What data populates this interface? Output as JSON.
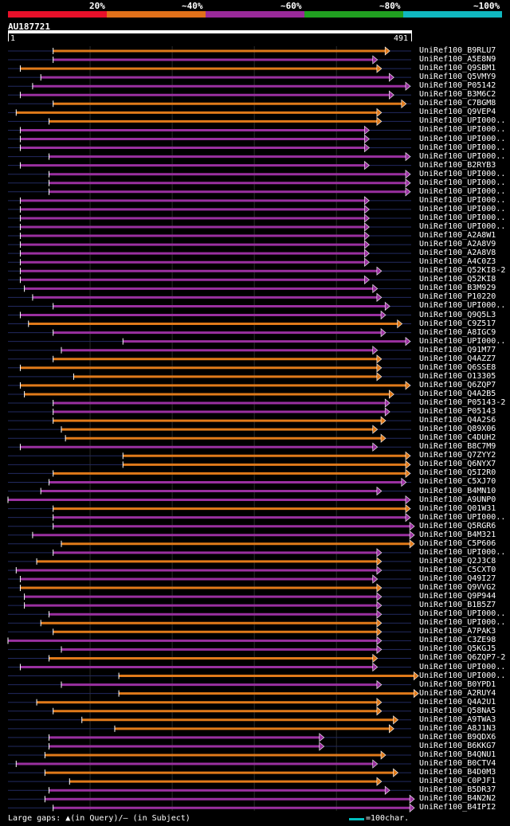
{
  "legend": [
    {
      "label": "20%",
      "color": "#e8102a"
    },
    {
      "label": "~40%",
      "color": "#e0701a"
    },
    {
      "label": "~60%",
      "color": "#9a2a9a"
    },
    {
      "label": "~80%",
      "color": "#20a020"
    },
    {
      "label": "~100%",
      "color": "#10b8c0"
    }
  ],
  "query": {
    "name": "AU187721",
    "start": "1",
    "end": "491"
  },
  "footer": {
    "gaps_text": "Large gaps: ▲(in Query)/– (in Subject)",
    "scale_text": "=100char."
  },
  "colors": {
    "orange": "#e07a1a",
    "purple": "#9a30a0",
    "gap": "#ffffff",
    "guide": "#222a60"
  },
  "chart_data": {
    "type": "alignment-overview",
    "query_length": 491,
    "hits": [
      {
        "name": "UniRef100_B9RLU7",
        "start": 55,
        "end": 465,
        "color": "orange"
      },
      {
        "name": "UniRef100_A5E8N9",
        "start": 55,
        "end": 450,
        "color": "purple"
      },
      {
        "name": "UniRef100_Q9SBM1",
        "start": 15,
        "end": 455,
        "color": "orange"
      },
      {
        "name": "UniRef100_Q5VMY9",
        "start": 40,
        "end": 470,
        "color": "purple"
      },
      {
        "name": "UniRef100_P05142",
        "start": 30,
        "end": 490,
        "color": "purple"
      },
      {
        "name": "UniRef100_B3M6C2",
        "start": 15,
        "end": 470,
        "color": "purple"
      },
      {
        "name": "UniRef100_C7BGM8",
        "start": 55,
        "end": 485,
        "color": "orange"
      },
      {
        "name": "UniRef100_Q9VEP4",
        "start": 10,
        "end": 455,
        "color": "orange"
      },
      {
        "name": "UniRef100_UPI000..",
        "start": 50,
        "end": 455,
        "color": "orange"
      },
      {
        "name": "UniRef100_UPI000..",
        "start": 15,
        "end": 440,
        "color": "purple"
      },
      {
        "name": "UniRef100_UPI000..",
        "start": 15,
        "end": 440,
        "color": "purple"
      },
      {
        "name": "UniRef100_UPI000..",
        "start": 15,
        "end": 440,
        "color": "purple"
      },
      {
        "name": "UniRef100_UPI000..",
        "start": 50,
        "end": 490,
        "color": "purple"
      },
      {
        "name": "UniRef100_B2RYB3",
        "start": 15,
        "end": 440,
        "color": "purple"
      },
      {
        "name": "UniRef100_UPI000..",
        "start": 50,
        "end": 490,
        "color": "purple"
      },
      {
        "name": "UniRef100_UPI000..",
        "start": 50,
        "end": 490,
        "color": "purple"
      },
      {
        "name": "UniRef100_UPI000..",
        "start": 50,
        "end": 490,
        "color": "purple"
      },
      {
        "name": "UniRef100_UPI000..",
        "start": 15,
        "end": 440,
        "color": "purple"
      },
      {
        "name": "UniRef100_UPI000..",
        "start": 15,
        "end": 440,
        "color": "purple"
      },
      {
        "name": "UniRef100_UPI000..",
        "start": 15,
        "end": 440,
        "color": "purple"
      },
      {
        "name": "UniRef100_UPI000..",
        "start": 15,
        "end": 440,
        "color": "purple"
      },
      {
        "name": "UniRef100_A2A8W1",
        "start": 15,
        "end": 440,
        "color": "purple"
      },
      {
        "name": "UniRef100_A2A8V9",
        "start": 15,
        "end": 440,
        "color": "purple"
      },
      {
        "name": "UniRef100_A2A8V8",
        "start": 15,
        "end": 440,
        "color": "purple"
      },
      {
        "name": "UniRef100_A4C0Z3",
        "start": 15,
        "end": 440,
        "color": "purple"
      },
      {
        "name": "UniRef100_Q52KI8-2",
        "start": 15,
        "end": 455,
        "color": "purple"
      },
      {
        "name": "UniRef100_Q52KI8",
        "start": 15,
        "end": 440,
        "color": "purple"
      },
      {
        "name": "UniRef100_B3M929",
        "start": 20,
        "end": 450,
        "color": "purple"
      },
      {
        "name": "UniRef100_P10220",
        "start": 30,
        "end": 455,
        "color": "purple"
      },
      {
        "name": "UniRef100_UPI000..",
        "start": 55,
        "end": 465,
        "color": "purple"
      },
      {
        "name": "UniRef100_Q9Q5L3",
        "start": 15,
        "end": 460,
        "color": "purple"
      },
      {
        "name": "UniRef100_C9Z517",
        "start": 25,
        "end": 480,
        "color": "orange"
      },
      {
        "name": "UniRef100_A8IGC9",
        "start": 55,
        "end": 460,
        "color": "purple"
      },
      {
        "name": "UniRef100_UPI000..",
        "start": 140,
        "end": 490,
        "color": "purple"
      },
      {
        "name": "UniRef100_Q91M77",
        "start": 65,
        "end": 450,
        "color": "purple"
      },
      {
        "name": "UniRef100_Q4AZZ7",
        "start": 55,
        "end": 455,
        "color": "orange"
      },
      {
        "name": "UniRef100_Q6SSE8",
        "start": 15,
        "end": 455,
        "color": "orange"
      },
      {
        "name": "UniRef100_O13305",
        "start": 80,
        "end": 455,
        "color": "orange"
      },
      {
        "name": "UniRef100_Q6ZQP7",
        "start": 15,
        "end": 490,
        "color": "orange"
      },
      {
        "name": "UniRef100_Q4A2B5",
        "start": 20,
        "end": 470,
        "color": "orange"
      },
      {
        "name": "UniRef100_P05143-2",
        "start": 55,
        "end": 465,
        "color": "purple"
      },
      {
        "name": "UniRef100_P05143",
        "start": 55,
        "end": 465,
        "color": "purple"
      },
      {
        "name": "UniRef100_Q4A2S6",
        "start": 55,
        "end": 460,
        "color": "orange"
      },
      {
        "name": "UniRef100_Q89X06",
        "start": 65,
        "end": 450,
        "color": "orange"
      },
      {
        "name": "UniRef100_C4DUH2",
        "start": 70,
        "end": 460,
        "color": "orange"
      },
      {
        "name": "UniRef100_B8C7M9",
        "start": 15,
        "end": 450,
        "color": "purple"
      },
      {
        "name": "UniRef100_Q7ZYY2",
        "start": 140,
        "end": 490,
        "color": "orange"
      },
      {
        "name": "UniRef100_Q6NYX7",
        "start": 140,
        "end": 490,
        "color": "orange"
      },
      {
        "name": "UniRef100_Q5I2R0",
        "start": 55,
        "end": 490,
        "color": "orange"
      },
      {
        "name": "UniRef100_C5XJ70",
        "start": 50,
        "end": 485,
        "color": "purple"
      },
      {
        "name": "UniRef100_B4MN10",
        "start": 40,
        "end": 455,
        "color": "purple"
      },
      {
        "name": "UniRef100_A9UNP0",
        "start": 0,
        "end": 490,
        "color": "purple"
      },
      {
        "name": "UniRef100_Q01W31",
        "start": 55,
        "end": 490,
        "color": "orange"
      },
      {
        "name": "UniRef100_UPI000..",
        "start": 55,
        "end": 490,
        "color": "purple"
      },
      {
        "name": "UniRef100_Q5RGR6",
        "start": 55,
        "end": 495,
        "color": "purple"
      },
      {
        "name": "UniRef100_B4M321",
        "start": 30,
        "end": 495,
        "color": "purple"
      },
      {
        "name": "UniRef100_C5P606",
        "start": 65,
        "end": 495,
        "color": "orange"
      },
      {
        "name": "UniRef100_UPI000..",
        "start": 55,
        "end": 455,
        "color": "purple"
      },
      {
        "name": "UniRef100_Q2J3C8",
        "start": 35,
        "end": 455,
        "color": "orange"
      },
      {
        "name": "UniRef100_C5CXT0",
        "start": 10,
        "end": 455,
        "color": "purple"
      },
      {
        "name": "UniRef100_Q49I27",
        "start": 15,
        "end": 450,
        "color": "purple"
      },
      {
        "name": "UniRef100_Q9VVG2",
        "start": 15,
        "end": 455,
        "color": "orange"
      },
      {
        "name": "UniRef100_Q9P944",
        "start": 20,
        "end": 455,
        "color": "purple"
      },
      {
        "name": "UniRef100_B1B5Z7",
        "start": 20,
        "end": 455,
        "color": "purple"
      },
      {
        "name": "UniRef100_UPI000..",
        "start": 50,
        "end": 455,
        "color": "purple"
      },
      {
        "name": "UniRef100_UPI000..",
        "start": 40,
        "end": 455,
        "color": "orange"
      },
      {
        "name": "UniRef100_A7PAK3",
        "start": 55,
        "end": 455,
        "color": "orange"
      },
      {
        "name": "UniRef100_C3ZE98",
        "start": 0,
        "end": 455,
        "color": "purple"
      },
      {
        "name": "UniRef100_Q5KGJ5",
        "start": 65,
        "end": 455,
        "color": "purple"
      },
      {
        "name": "UniRef100_Q6ZQP7-2",
        "start": 50,
        "end": 450,
        "color": "orange"
      },
      {
        "name": "UniRef100_UPI000..",
        "start": 15,
        "end": 450,
        "color": "purple"
      },
      {
        "name": "UniRef100_UPI000..",
        "start": 135,
        "end": 500,
        "color": "orange"
      },
      {
        "name": "UniRef100_B0YPD1",
        "start": 65,
        "end": 455,
        "color": "purple"
      },
      {
        "name": "UniRef100_A2RUY4",
        "start": 135,
        "end": 500,
        "color": "orange"
      },
      {
        "name": "UniRef100_Q4A2U1",
        "start": 35,
        "end": 455,
        "color": "orange"
      },
      {
        "name": "UniRef100_Q58NA5",
        "start": 55,
        "end": 455,
        "color": "orange"
      },
      {
        "name": "UniRef100_A9TWA3",
        "start": 90,
        "end": 475,
        "color": "orange"
      },
      {
        "name": "UniRef100_A8J1N3",
        "start": 130,
        "end": 470,
        "color": "orange"
      },
      {
        "name": "UniRef100_B9QDX6",
        "start": 50,
        "end": 385,
        "color": "purple"
      },
      {
        "name": "UniRef100_B6KKG7",
        "start": 50,
        "end": 385,
        "color": "purple"
      },
      {
        "name": "UniRef100_B4QNU1",
        "start": 45,
        "end": 460,
        "color": "orange"
      },
      {
        "name": "UniRef100_B0CTV4",
        "start": 10,
        "end": 450,
        "color": "purple"
      },
      {
        "name": "UniRef100_B4D0M3",
        "start": 45,
        "end": 475,
        "color": "orange"
      },
      {
        "name": "UniRef100_C0PJF1",
        "start": 75,
        "end": 455,
        "color": "orange"
      },
      {
        "name": "UniRef100_B5DR37",
        "start": 50,
        "end": 465,
        "color": "purple"
      },
      {
        "name": "UniRef100_B4N2N2",
        "start": 45,
        "end": 495,
        "color": "purple"
      },
      {
        "name": "UniRef100_B4IPI2",
        "start": 55,
        "end": 495,
        "color": "purple"
      }
    ]
  }
}
